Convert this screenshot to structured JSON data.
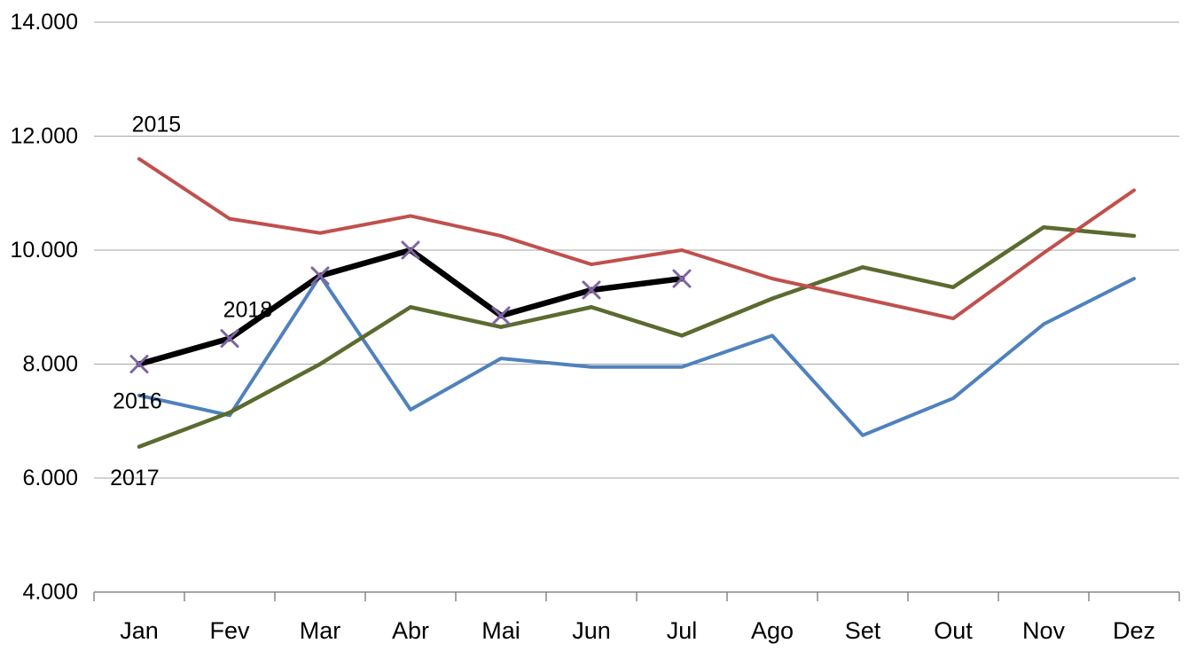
{
  "chart_data": {
    "type": "line",
    "title": "",
    "xlabel": "",
    "ylabel": "",
    "categories": [
      "Jan",
      "Fev",
      "Mar",
      "Abr",
      "Mai",
      "Jun",
      "Jul",
      "Ago",
      "Set",
      "Out",
      "Nov",
      "Dez"
    ],
    "series": [
      {
        "name": "2015",
        "color": "#C0504D",
        "line_width": 4,
        "marker": "none",
        "values": [
          11600,
          10550,
          10300,
          10600,
          10250,
          9750,
          10000,
          9500,
          9150,
          8800,
          9950,
          11050
        ]
      },
      {
        "name": "2016",
        "color": "#4F81BD",
        "line_width": 4,
        "marker": "none",
        "values": [
          7450,
          7100,
          9550,
          7200,
          8100,
          7950,
          7950,
          8500,
          6750,
          7400,
          8700,
          9500
        ]
      },
      {
        "name": "2017",
        "color": "#5A6B2F",
        "line_width": 4.5,
        "marker": "none",
        "values": [
          6550,
          7150,
          8000,
          9000,
          8650,
          9000,
          8500,
          9150,
          9700,
          9350,
          10400,
          10250
        ]
      },
      {
        "name": "2018",
        "color": "#000000",
        "line_width": 6.5,
        "marker": "x",
        "marker_color": "#8064A2",
        "values": [
          8000,
          8450,
          9550,
          10000,
          8850,
          9300,
          9500,
          null,
          null,
          null,
          null,
          null
        ]
      }
    ],
    "annotations": [
      {
        "text": "2015",
        "month": 0.19,
        "value": 12200
      },
      {
        "text": "2018",
        "month": 1.2,
        "value": 8950
      },
      {
        "text": "2016",
        "month": -0.02,
        "value": 7350
      },
      {
        "text": "2017",
        "month": -0.05,
        "value": 6000
      }
    ],
    "y_axis": {
      "min": 4000,
      "max": 14000,
      "step": 2000,
      "tick_labels": [
        "4.000",
        "6.000",
        "8.000",
        "10.000",
        "12.000",
        "14.000"
      ]
    },
    "grid": true,
    "legend": "inline-labels",
    "colors": {
      "gridline": "#A6A6A6",
      "axis": "#808080",
      "text": "#000000",
      "background": "#FFFFFF"
    },
    "draw_order": [
      "2016",
      "2017",
      "2015",
      "2018"
    ]
  }
}
